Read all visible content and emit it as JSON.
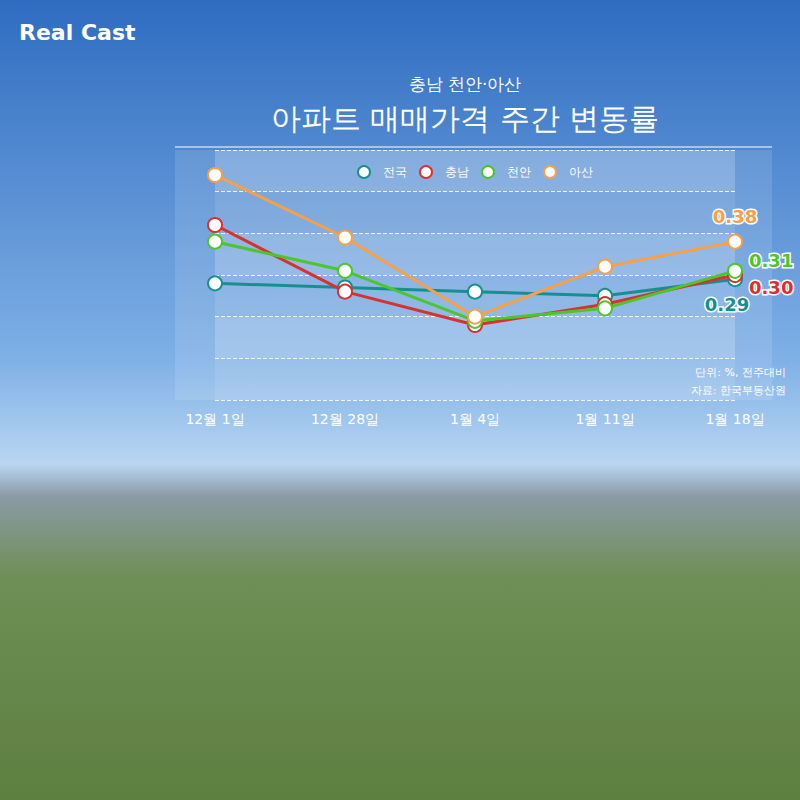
{
  "chart_data": {
    "type": "line",
    "brand": "Real Cast",
    "subtitle": "충남 천안·아산",
    "title": "아파트 매매가격 주간 변동률",
    "notes": [
      "단위: %, 전주대비",
      "자료: 한국부동산원"
    ],
    "categories": [
      "12월 1일",
      "12월 28일",
      "1월 4일",
      "1월 11일",
      "1월 18일"
    ],
    "series": [
      {
        "name": "전국",
        "color": "#178f8f",
        "values": [
          0.28,
          0.27,
          0.26,
          0.25,
          0.29
        ],
        "value_labels": [
          null,
          null,
          null,
          null,
          "0.29"
        ]
      },
      {
        "name": "충남",
        "color": "#d9312f",
        "values": [
          0.42,
          0.26,
          0.18,
          0.23,
          0.3
        ],
        "value_labels": [
          null,
          null,
          null,
          null,
          "0.30"
        ]
      },
      {
        "name": "천안",
        "color": "#4cc62a",
        "values": [
          0.38,
          0.31,
          0.19,
          0.22,
          0.31
        ],
        "value_labels": [
          null,
          null,
          null,
          null,
          "0.31"
        ]
      },
      {
        "name": "아산",
        "color": "#f5a04a",
        "values": [
          0.54,
          0.39,
          0.2,
          0.32,
          0.38
        ],
        "value_labels": [
          null,
          null,
          null,
          null,
          "0.38"
        ]
      }
    ],
    "ylim": [
      0,
      0.6
    ],
    "yticks": [
      0,
      0.1,
      0.2,
      0.3,
      0.4,
      0.5,
      0.6
    ],
    "grid": true,
    "legend": "top",
    "data_labels": true,
    "tick_labels": "x",
    "marker": "emptyCircle"
  }
}
